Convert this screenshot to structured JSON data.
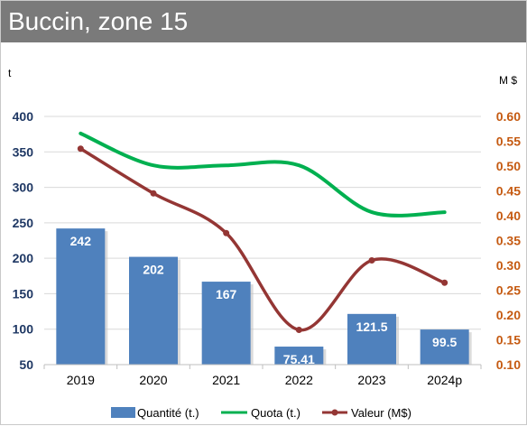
{
  "title": "Buccin, zone 15",
  "chart_data": {
    "type": "bar",
    "categories": [
      "2019",
      "2020",
      "2021",
      "2022",
      "2023",
      "2024p"
    ],
    "left_axis": {
      "unit": "t",
      "ticks": [
        "400",
        "350",
        "300",
        "250",
        "200",
        "150",
        "100",
        "50"
      ],
      "ylim": [
        50,
        400
      ]
    },
    "right_axis": {
      "unit": "M $",
      "ticks": [
        "0.60",
        "0.55",
        "0.50",
        "0.45",
        "0.40",
        "0.35",
        "0.30",
        "0.25",
        "0.20",
        "0.15",
        "0.10"
      ],
      "ylim": [
        0.1,
        0.6
      ]
    },
    "bars": {
      "name": "Quantité (t.)",
      "color": "#4f81bd",
      "values": [
        242,
        202,
        167,
        75.41,
        121.5,
        99.5
      ],
      "labels": [
        "242",
        "202",
        "167",
        "75.41",
        "121.5",
        "99.5"
      ]
    },
    "series": [
      {
        "name": "Quota (t.)",
        "color": "#00b050",
        "axis": "left",
        "values": [
          376,
          331,
          331,
          331,
          265,
          265
        ]
      },
      {
        "name": "Valeur (M$)",
        "color": "#943634",
        "axis": "right",
        "values": [
          0.535,
          0.445,
          0.365,
          0.17,
          0.31,
          0.265
        ]
      }
    ],
    "grid": true,
    "legend_position": "bottom"
  }
}
